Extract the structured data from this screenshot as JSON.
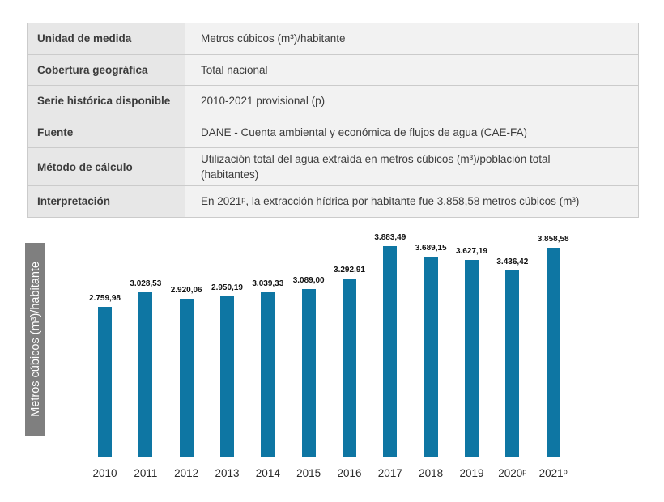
{
  "table": {
    "rows": [
      {
        "label": "Unidad de medida",
        "value": "Metros cúbicos (m³)/habitante"
      },
      {
        "label": "Cobertura geográfica",
        "value": "Total nacional"
      },
      {
        "label": "Serie histórica disponible",
        "value": "2010-2021 provisional (p)"
      },
      {
        "label": "Fuente",
        "value": "DANE - Cuenta ambiental y económica de flujos de agua (CAE-FA)"
      },
      {
        "label": "Método de cálculo",
        "value": "Utilización total del agua extraída en metros cúbicos (m³)/población total (habitantes)"
      },
      {
        "label": "Interpretación",
        "value": "En 2021ᵖ, la extracción hídrica por habitante fue 3.858,58 metros cúbicos (m³)"
      }
    ]
  },
  "chart_data": {
    "type": "bar",
    "categories": [
      "2010",
      "2011",
      "2012",
      "2013",
      "2014",
      "2015",
      "2016",
      "2017",
      "2018",
      "2019",
      "2020ᵖ",
      "2021ᵖ"
    ],
    "values": [
      2759.98,
      3028.53,
      2920.06,
      2950.19,
      3039.33,
      3089.0,
      3292.91,
      3883.49,
      3689.15,
      3627.19,
      3436.42,
      3858.58
    ],
    "value_labels": [
      "2.759,98",
      "3.028,53",
      "2.920,06",
      "2.950,19",
      "3.039,33",
      "3.089,00",
      "3.292,91",
      "3.883,49",
      "3.689,15",
      "3.627,19",
      "3.436,42",
      "3.858,58"
    ],
    "title": "",
    "xlabel": "",
    "ylabel": "Metros cúbicos (m³)/habitante",
    "ylim": [
      0,
      3900
    ],
    "grid": false,
    "legend": "none",
    "bar_color": "#0e76a3"
  }
}
